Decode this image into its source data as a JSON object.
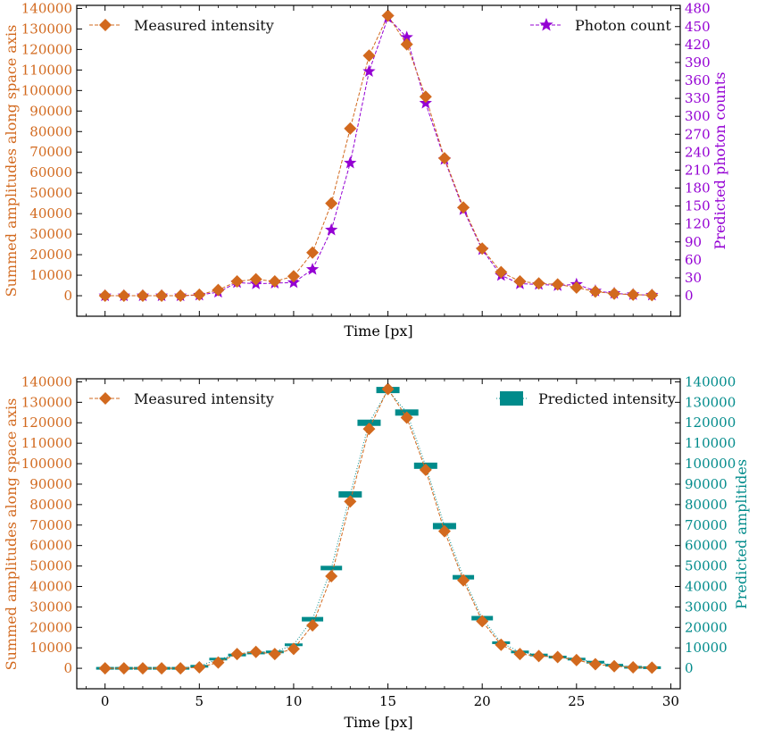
{
  "colors": {
    "measured": "#d2691e",
    "photon": "#9400d3",
    "predicted": "#008b8b",
    "axis": "#000000"
  },
  "chart_data": [
    {
      "type": "line",
      "panel": "top",
      "xlabel": "Time [px]",
      "ylabel_left": "Summed amplitudes along space axis",
      "ylabel_right": "Predicted photon counts",
      "xlim": [
        -1.5,
        30.5
      ],
      "ylim_left": [
        -10000,
        141500
      ],
      "ylim_right": [
        -34.31,
        485.5
      ],
      "xticks": [
        0,
        5,
        10,
        15,
        20,
        25,
        30
      ],
      "xtick_labels_visible": false,
      "yticks_left": [
        0,
        10000,
        20000,
        30000,
        40000,
        50000,
        60000,
        70000,
        80000,
        90000,
        100000,
        110000,
        120000,
        130000,
        140000
      ],
      "yticks_right": [
        0,
        30,
        60,
        90,
        120,
        150,
        180,
        210,
        240,
        270,
        300,
        330,
        360,
        390,
        420,
        450,
        480
      ],
      "legend": [
        {
          "label": "Measured intensity",
          "position": "top-left"
        },
        {
          "label": "Photon count",
          "position": "top-right"
        }
      ],
      "series": [
        {
          "name": "Measured intensity",
          "axis": "left",
          "marker": "diamond",
          "x": [
            0,
            1,
            2,
            3,
            4,
            5,
            6,
            7,
            8,
            9,
            10,
            11,
            12,
            13,
            14,
            15,
            16,
            17,
            18,
            19,
            20,
            21,
            22,
            23,
            24,
            25,
            26,
            27,
            28,
            29
          ],
          "values": [
            0,
            0,
            0,
            0,
            0,
            500,
            2800,
            7000,
            8000,
            7000,
            9500,
            21000,
            45000,
            81500,
            117000,
            136500,
            122500,
            97000,
            67000,
            43000,
            23000,
            11500,
            7000,
            6000,
            5500,
            4000,
            2000,
            1000,
            500,
            300
          ]
        },
        {
          "name": "Photon count",
          "axis": "right",
          "marker": "star",
          "x": [
            0,
            1,
            2,
            3,
            4,
            5,
            6,
            7,
            8,
            9,
            10,
            11,
            12,
            13,
            14,
            15,
            16,
            17,
            18,
            19,
            20,
            21,
            22,
            23,
            24,
            25,
            26,
            27,
            28,
            29
          ],
          "values": [
            0,
            0,
            0,
            0,
            0,
            1,
            6,
            22,
            20,
            21,
            22,
            44,
            110,
            222,
            375,
            465,
            432,
            322,
            228,
            144,
            77,
            34,
            20,
            19,
            17,
            19,
            8,
            4,
            2,
            1
          ]
        }
      ]
    },
    {
      "type": "line",
      "panel": "bottom",
      "xlabel": "Time [px]",
      "ylabel_left": "Summed amplitudes along space axis",
      "ylabel_right": "Predicted amplitides",
      "xlim": [
        -1.5,
        30.5
      ],
      "ylim_left": [
        -10000,
        141500
      ],
      "ylim_right": [
        -10000,
        141500
      ],
      "xticks": [
        0,
        5,
        10,
        15,
        20,
        25,
        30
      ],
      "xtick_labels_visible": true,
      "yticks_left": [
        0,
        10000,
        20000,
        30000,
        40000,
        50000,
        60000,
        70000,
        80000,
        90000,
        100000,
        110000,
        120000,
        130000,
        140000
      ],
      "yticks_right": [
        0,
        10000,
        20000,
        30000,
        40000,
        50000,
        60000,
        70000,
        80000,
        90000,
        100000,
        110000,
        120000,
        130000,
        140000
      ],
      "legend": [
        {
          "label": "Measured intensity",
          "position": "top-left"
        },
        {
          "label": "Predicted intensity",
          "position": "top-right"
        }
      ],
      "series": [
        {
          "name": "Measured intensity",
          "axis": "left",
          "marker": "diamond",
          "x": [
            0,
            1,
            2,
            3,
            4,
            5,
            6,
            7,
            8,
            9,
            10,
            11,
            12,
            13,
            14,
            15,
            16,
            17,
            18,
            19,
            20,
            21,
            22,
            23,
            24,
            25,
            26,
            27,
            28,
            29
          ],
          "values": [
            0,
            0,
            0,
            0,
            0,
            500,
            2800,
            7000,
            8000,
            7000,
            9500,
            21000,
            45000,
            81500,
            117000,
            136500,
            122500,
            97000,
            67000,
            43000,
            23000,
            11500,
            7000,
            6000,
            5500,
            4000,
            2000,
            1000,
            500,
            300
          ]
        },
        {
          "name": "Predicted intensity",
          "axis": "right",
          "marker": "bar-segment",
          "x": [
            0,
            1,
            2,
            3,
            4,
            5,
            6,
            7,
            8,
            9,
            10,
            11,
            12,
            13,
            14,
            15,
            16,
            17,
            18,
            19,
            20,
            21,
            22,
            23,
            24,
            25,
            26,
            27,
            28,
            29
          ],
          "values": [
            0,
            0,
            0,
            0,
            0,
            1000,
            4500,
            6500,
            7500,
            8000,
            11500,
            24000,
            49000,
            85000,
            120000,
            136000,
            125000,
            99000,
            69500,
            44500,
            24500,
            12500,
            8000,
            6500,
            5500,
            4500,
            3000,
            1500,
            500,
            300
          ]
        }
      ]
    }
  ]
}
